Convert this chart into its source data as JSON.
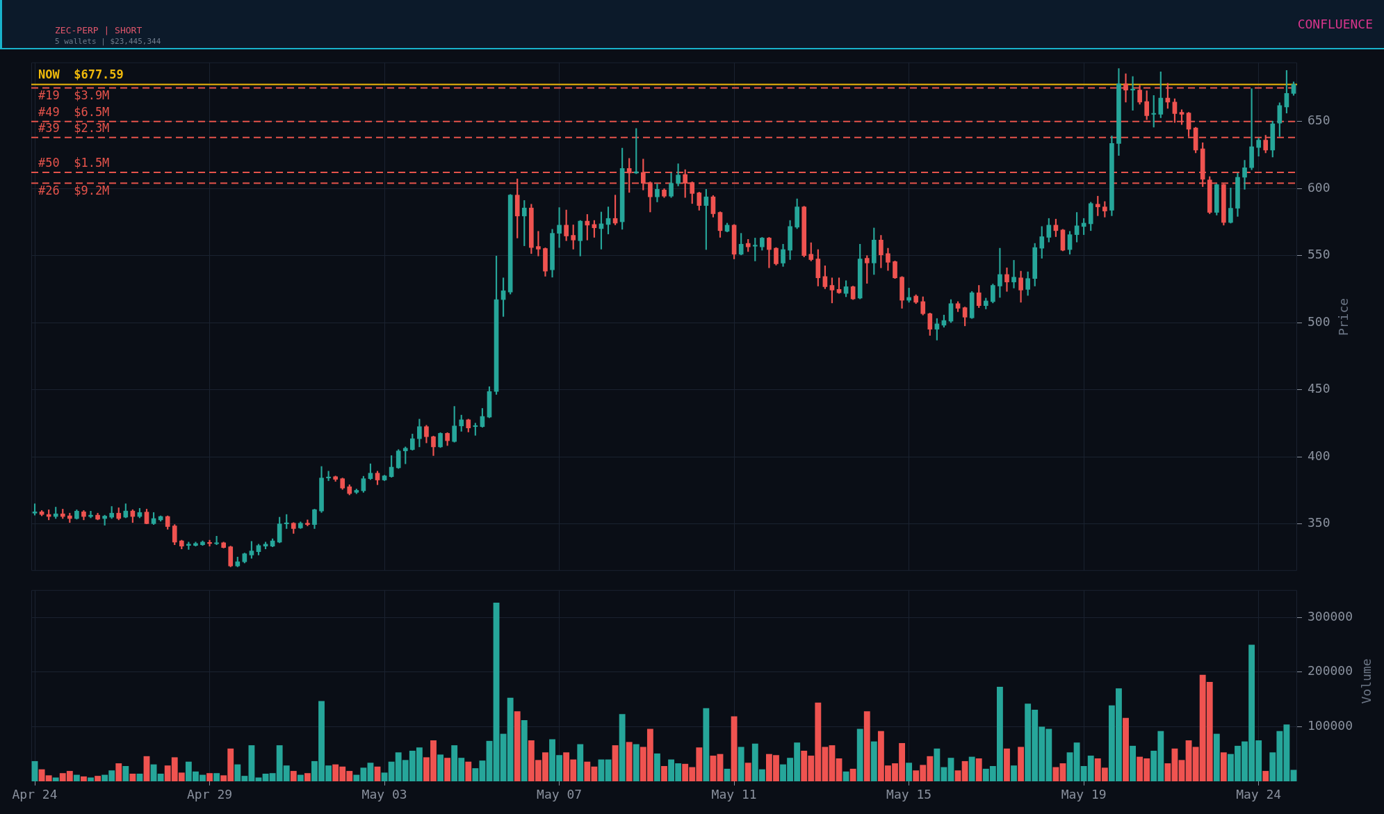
{
  "chart_data": [
    {
      "type": "candlestick",
      "title": "ZEC-PERP | SHORT",
      "subtitle": "5 wallets | $23,445,344",
      "annotations": [
        "CONFLUENCE"
      ],
      "ylabel": "Price",
      "tick_labels": "y",
      "grid": true,
      "categories": [
        null,
        null,
        null,
        null,
        null,
        null,
        null,
        null,
        null,
        null,
        null,
        null,
        null,
        null,
        null,
        null,
        null,
        null,
        null,
        null,
        null,
        null,
        null,
        null,
        null,
        null,
        null,
        null,
        null,
        null,
        null,
        null,
        null,
        null,
        null,
        null,
        null,
        null,
        null,
        null,
        null,
        null,
        null,
        null,
        null,
        null,
        null,
        null,
        null,
        null,
        null,
        null,
        null,
        null,
        null,
        null,
        null,
        null,
        null,
        null,
        null,
        null,
        null,
        null,
        null,
        null,
        null,
        null,
        null,
        null,
        null,
        null,
        null,
        null,
        null,
        null,
        null,
        null,
        null,
        null,
        null,
        null,
        null,
        null,
        null,
        null,
        null,
        null,
        null,
        null,
        null,
        null,
        null,
        null,
        null,
        null,
        null,
        null,
        null,
        null,
        null,
        null,
        null,
        null,
        null,
        null,
        null,
        null,
        null,
        null,
        null,
        null,
        null,
        null,
        null,
        null,
        null,
        null,
        null,
        null,
        null,
        null,
        null,
        null,
        null,
        null,
        null,
        null,
        null,
        null,
        null,
        null,
        null,
        null,
        null,
        null,
        null,
        null,
        null,
        null,
        null,
        null,
        null,
        null,
        null,
        null,
        null,
        null,
        null,
        null,
        null,
        null,
        null,
        null,
        null,
        null,
        null,
        null,
        null,
        null,
        null,
        null,
        null,
        null,
        null,
        null,
        null,
        null,
        null,
        null,
        null,
        null,
        null,
        null,
        null,
        null,
        null,
        null,
        null,
        null,
        null
      ],
      "ohlc": [
        [
          358,
          365,
          356.5,
          359
        ],
        [
          359,
          360,
          356,
          357
        ],
        [
          357,
          360.5,
          353,
          355.5
        ],
        [
          355.5,
          362.5,
          354,
          357.5
        ],
        [
          357.5,
          361,
          354,
          355.5
        ],
        [
          356,
          358,
          351,
          354
        ],
        [
          354,
          360.5,
          353.5,
          359.5
        ],
        [
          359,
          360,
          353,
          355.5
        ],
        [
          355.5,
          359.5,
          354.5,
          356.5
        ],
        [
          356.5,
          358,
          353,
          353.5
        ],
        [
          354,
          356.5,
          349,
          355.8
        ],
        [
          355,
          363,
          354,
          358
        ],
        [
          358,
          362,
          353,
          354
        ],
        [
          355,
          365,
          354.5,
          359.6
        ],
        [
          359.6,
          360.6,
          351,
          355.5
        ],
        [
          355.5,
          361.6,
          354.5,
          358.5
        ],
        [
          358.8,
          361,
          350,
          350.2
        ],
        [
          350.2,
          358.5,
          349.5,
          354
        ],
        [
          353,
          356,
          352,
          355.5
        ],
        [
          355.5,
          356,
          346,
          348
        ],
        [
          348.5,
          349.5,
          334.4,
          336.4
        ],
        [
          337.4,
          337.9,
          331.4,
          333.4
        ],
        [
          333.9,
          336.4,
          330.9,
          334.9
        ],
        [
          333.9,
          336.4,
          333.4,
          335.4
        ],
        [
          334.4,
          337.4,
          333.9,
          336.4
        ],
        [
          336.2,
          337.9,
          333.4,
          335.4
        ],
        [
          335.2,
          340.9,
          334.4,
          335.7
        ],
        [
          335.9,
          336.4,
          332,
          332.4
        ],
        [
          332.9,
          333.4,
          318,
          318.7
        ],
        [
          318.7,
          325.3,
          318,
          321.8
        ],
        [
          321.8,
          328.3,
          320.8,
          327.8
        ],
        [
          326.8,
          336.9,
          324.3,
          329.8
        ],
        [
          329.3,
          334.9,
          326.8,
          333.9
        ],
        [
          333.4,
          336.4,
          331.4,
          334.9
        ],
        [
          333.4,
          338.9,
          332.9,
          337.4
        ],
        [
          336.4,
          355,
          335.9,
          350
        ],
        [
          350,
          357,
          346.5,
          350.5
        ],
        [
          350.5,
          351,
          342.9,
          346.5
        ],
        [
          347,
          351.5,
          346.5,
          350.5
        ],
        [
          350.5,
          353,
          348.5,
          349.5
        ],
        [
          349.5,
          361,
          346.5,
          360.6
        ],
        [
          359.6,
          392.8,
          358.5,
          384.2
        ],
        [
          384.2,
          389.3,
          382.2,
          384.9
        ],
        [
          385.2,
          385.7,
          381.7,
          383.2
        ],
        [
          383.7,
          384.2,
          375.7,
          376.7
        ],
        [
          377.7,
          379.2,
          371.6,
          372.6
        ],
        [
          373.5,
          376,
          372.5,
          375
        ],
        [
          374.7,
          385.5,
          373.5,
          383.7
        ],
        [
          383.7,
          394.8,
          383,
          387.8
        ],
        [
          387.8,
          389.3,
          379.2,
          382.7
        ],
        [
          382.7,
          386.3,
          382.2,
          385.8
        ],
        [
          385.2,
          400.9,
          384.7,
          392.3
        ],
        [
          391.8,
          405.4,
          391.3,
          404.4
        ],
        [
          404.4,
          407.4,
          394.8,
          406.4
        ],
        [
          405.4,
          417,
          404.9,
          413.5
        ],
        [
          413.5,
          428.1,
          407.4,
          422.5
        ],
        [
          422.5,
          423.5,
          410.4,
          415
        ],
        [
          415,
          415.5,
          400.9,
          407.4
        ],
        [
          407.4,
          418,
          406.9,
          417.5
        ],
        [
          417.5,
          418,
          408.4,
          412
        ],
        [
          411.4,
          437.6,
          410.9,
          423
        ],
        [
          423,
          431.1,
          419,
          427.6
        ],
        [
          427.6,
          428.1,
          418.5,
          421.5
        ],
        [
          422.5,
          425.1,
          416,
          423
        ],
        [
          422.5,
          436.1,
          422,
          430.1
        ],
        [
          429.6,
          452.3,
          429.1,
          448.7
        ],
        [
          448.7,
          549.7,
          446.5,
          517.2
        ],
        [
          517.2,
          533.4,
          504.6,
          523.8
        ],
        [
          522.8,
          595.6,
          521.3,
          595.1
        ],
        [
          595.1,
          607.2,
          563.1,
          579.5
        ],
        [
          579.5,
          591.1,
          557.3,
          585.5
        ],
        [
          585.5,
          588.3,
          551.5,
          556
        ],
        [
          556.8,
          568.1,
          549.7,
          554.8
        ],
        [
          555.3,
          555.8,
          534.6,
          538.4
        ],
        [
          539.4,
          569.6,
          533.9,
          566.6
        ],
        [
          566.6,
          585.8,
          556,
          572.7
        ],
        [
          572.7,
          584,
          561.1,
          564.6
        ],
        [
          565.1,
          572.9,
          554.8,
          561.6
        ],
        [
          561.1,
          576.2,
          549.7,
          575.7
        ],
        [
          575.7,
          580.7,
          561.6,
          572.7
        ],
        [
          573.2,
          576.2,
          563.6,
          570.7
        ],
        [
          570.1,
          582.5,
          554.8,
          573.7
        ],
        [
          573.2,
          586.3,
          566.1,
          577.7
        ],
        [
          577.7,
          595.1,
          572.9,
          574.2
        ],
        [
          575.2,
          630.1,
          569.6,
          615
        ],
        [
          615,
          622.5,
          597.1,
          611.5
        ],
        [
          611.5,
          644.7,
          611,
          612.5
        ],
        [
          612,
          622,
          598.9,
          603.9
        ],
        [
          604.4,
          605,
          582.5,
          593.8
        ],
        [
          593.8,
          603.4,
          590,
          599.4
        ],
        [
          598.9,
          599.9,
          593.3,
          594.3
        ],
        [
          594.3,
          611.5,
          593.3,
          603.9
        ],
        [
          603.9,
          618.5,
          601.9,
          610
        ],
        [
          610.4,
          614,
          593.3,
          603.9
        ],
        [
          604.4,
          605,
          588.8,
          596.3
        ],
        [
          596.8,
          597.3,
          583.8,
          587.3
        ],
        [
          587.3,
          599.4,
          554.5,
          593.8
        ],
        [
          593.8,
          594.8,
          578.7,
          581.2
        ],
        [
          582.2,
          582.7,
          563.6,
          568.6
        ],
        [
          568.1,
          574.2,
          567.6,
          572.7
        ],
        [
          572.7,
          573.2,
          547.5,
          551
        ],
        [
          551,
          566.6,
          550.5,
          558.5
        ],
        [
          559.1,
          562.1,
          553,
          556.5
        ],
        [
          557,
          563.1,
          546,
          557.6
        ],
        [
          556.5,
          563.6,
          554,
          563.1
        ],
        [
          563.1,
          563.6,
          540.9,
          554.5
        ],
        [
          555.5,
          556,
          542.9,
          543.9
        ],
        [
          544.4,
          558.5,
          541.9,
          554.5
        ],
        [
          554,
          576.2,
          547,
          571.7
        ],
        [
          571.2,
          592.3,
          570.1,
          586.3
        ],
        [
          586.3,
          586.8,
          549,
          550
        ],
        [
          551,
          559.6,
          546,
          547
        ],
        [
          547.5,
          554.5,
          527.3,
          533.4
        ],
        [
          534.4,
          542.4,
          525.3,
          526.8
        ],
        [
          527.8,
          533.4,
          514.7,
          524.3
        ],
        [
          524.8,
          533.4,
          521.8,
          522.3
        ],
        [
          521.8,
          531.3,
          519.3,
          526.8
        ],
        [
          526.8,
          527.3,
          517.2,
          517.7
        ],
        [
          518.3,
          558.5,
          517.7,
          547.5
        ],
        [
          548,
          550,
          529.3,
          544.5
        ],
        [
          544.5,
          570.6,
          535.9,
          561.6
        ],
        [
          561.6,
          565.1,
          540.9,
          550.5
        ],
        [
          551.5,
          555.5,
          538.9,
          545
        ],
        [
          545.5,
          546,
          532.9,
          533.4
        ],
        [
          533.9,
          534.4,
          510.7,
          516.7
        ],
        [
          516.7,
          525.8,
          515.2,
          518.8
        ],
        [
          519.8,
          520.8,
          514.2,
          515.2
        ],
        [
          515.7,
          519.3,
          505.7,
          506.7
        ],
        [
          506.7,
          507.2,
          490.5,
          495.1
        ],
        [
          495.1,
          503.1,
          487,
          499.1
        ],
        [
          498.1,
          505.7,
          496.6,
          501.6
        ],
        [
          501.1,
          517.2,
          500.1,
          514.2
        ],
        [
          514.2,
          515.7,
          508.2,
          510.7
        ],
        [
          511.2,
          511.7,
          497.6,
          504.1
        ],
        [
          503.6,
          523.3,
          503.1,
          522.3
        ],
        [
          522.3,
          527.8,
          511.2,
          512.7
        ],
        [
          512.7,
          518.3,
          510.2,
          516.2
        ],
        [
          515.7,
          528.8,
          514.7,
          527.8
        ],
        [
          527.3,
          555.5,
          518.8,
          535.9
        ],
        [
          535.9,
          540.9,
          523.3,
          530.3
        ],
        [
          530.3,
          546.5,
          525.8,
          533.9
        ],
        [
          533.4,
          538.4,
          515.2,
          524.3
        ],
        [
          524.8,
          537.9,
          520.3,
          532.9
        ],
        [
          532.9,
          559.1,
          527.3,
          556
        ],
        [
          555.5,
          571.7,
          548,
          564.1
        ],
        [
          563.6,
          577.7,
          560.1,
          572.7
        ],
        [
          572.7,
          577.2,
          564.1,
          568.6
        ],
        [
          569.1,
          569.6,
          553.5,
          554
        ],
        [
          554.5,
          568.1,
          551,
          565.6
        ],
        [
          565.6,
          582.2,
          560.1,
          572.2
        ],
        [
          571.7,
          577.7,
          565.6,
          574.2
        ],
        [
          573.7,
          589.8,
          568.6,
          588.8
        ],
        [
          588.3,
          594.3,
          579.7,
          586.3
        ],
        [
          586.3,
          590.3,
          578.7,
          583.2
        ],
        [
          583.8,
          639.2,
          579.7,
          633.6
        ],
        [
          633.6,
          689.5,
          624.6,
          678
        ],
        [
          678,
          685.5,
          664.4,
          673.4
        ],
        [
          673.4,
          683.5,
          658.3,
          673.9
        ],
        [
          673.4,
          676.9,
          662.8,
          664.4
        ],
        [
          664.9,
          672.9,
          651.3,
          654.3
        ],
        [
          655.3,
          669.4,
          645.7,
          655.8
        ],
        [
          655.3,
          687,
          652.8,
          667.4
        ],
        [
          667.4,
          678.5,
          659.8,
          664.4
        ],
        [
          664.4,
          666.9,
          649.2,
          655.8
        ],
        [
          656.8,
          658.8,
          647.7,
          655.3
        ],
        [
          656.3,
          656.8,
          638.7,
          644.2
        ],
        [
          645.2,
          645.7,
          626.6,
          628.6
        ],
        [
          629.6,
          634.1,
          601.4,
          606.9
        ],
        [
          606.4,
          608.9,
          581.2,
          582.2
        ],
        [
          582.2,
          603.4,
          580.2,
          602.9
        ],
        [
          602.9,
          603.4,
          572.7,
          574.7
        ],
        [
          574.7,
          600.4,
          574.2,
          585.3
        ],
        [
          585.3,
          611.5,
          579.2,
          608.4
        ],
        [
          608.4,
          621,
          599.4,
          615.5
        ],
        [
          615.5,
          674.4,
          614,
          631.1
        ],
        [
          630.6,
          637.6,
          624.1,
          636.1
        ],
        [
          636.1,
          639.7,
          626.6,
          628.6
        ],
        [
          628.6,
          650.2,
          623.5,
          648.2
        ],
        [
          648.7,
          663.9,
          638.7,
          661.8
        ],
        [
          660.8,
          688,
          656.3,
          670.9
        ],
        [
          670.9,
          679.5,
          669.4,
          677.6
        ]
      ],
      "colors": [
        "#26a69a",
        "#ef5350",
        "#ef5350",
        "#26a69a",
        "#ef5350",
        "#ef5350",
        "#26a69a",
        "#ef5350",
        "#26a69a",
        "#ef5350",
        "#26a69a",
        "#26a69a",
        "#ef5350",
        "#26a69a",
        "#ef5350",
        "#26a69a",
        "#ef5350",
        "#26a69a",
        "#26a69a",
        "#ef5350",
        "#ef5350",
        "#ef5350",
        "#26a69a",
        "#26a69a",
        "#26a69a",
        "#ef5350",
        "#26a69a",
        "#ef5350",
        "#ef5350",
        "#26a69a",
        "#26a69a",
        "#26a69a",
        "#26a69a",
        "#26a69a",
        "#26a69a",
        "#26a69a",
        "#26a69a",
        "#ef5350",
        "#26a69a",
        "#ef5350",
        "#26a69a",
        "#26a69a",
        "#26a69a",
        "#ef5350",
        "#ef5350",
        "#ef5350",
        "#26a69a",
        "#26a69a",
        "#26a69a",
        "#ef5350",
        "#26a69a",
        "#26a69a",
        "#26a69a",
        "#26a69a",
        "#26a69a",
        "#26a69a",
        "#ef5350",
        "#ef5350",
        "#26a69a",
        "#ef5350",
        "#26a69a",
        "#26a69a",
        "#ef5350",
        "#26a69a",
        "#26a69a",
        "#26a69a",
        "#26a69a",
        "#26a69a",
        "#26a69a",
        "#ef5350",
        "#26a69a",
        "#ef5350",
        "#ef5350",
        "#ef5350",
        "#26a69a",
        "#26a69a",
        "#ef5350",
        "#ef5350",
        "#26a69a",
        "#ef5350",
        "#ef5350",
        "#26a69a",
        "#26a69a",
        "#ef5350",
        "#26a69a",
        "#ef5350",
        "#26a69a",
        "#ef5350",
        "#ef5350",
        "#26a69a",
        "#ef5350",
        "#26a69a",
        "#26a69a",
        "#ef5350",
        "#ef5350",
        "#ef5350",
        "#26a69a",
        "#ef5350",
        "#ef5350",
        "#26a69a",
        "#ef5350",
        "#26a69a",
        "#ef5350",
        "#26a69a",
        "#26a69a",
        "#ef5350",
        "#ef5350",
        "#26a69a",
        "#26a69a",
        "#26a69a",
        "#ef5350",
        "#ef5350",
        "#ef5350",
        "#ef5350",
        "#ef5350",
        "#ef5350",
        "#26a69a",
        "#ef5350",
        "#26a69a",
        "#ef5350",
        "#26a69a",
        "#ef5350",
        "#ef5350",
        "#ef5350",
        "#ef5350",
        "#26a69a",
        "#ef5350",
        "#ef5350",
        "#ef5350",
        "#26a69a",
        "#26a69a",
        "#26a69a",
        "#ef5350",
        "#ef5350",
        "#26a69a",
        "#ef5350",
        "#26a69a",
        "#26a69a",
        "#26a69a",
        "#ef5350",
        "#26a69a",
        "#ef5350",
        "#26a69a",
        "#26a69a",
        "#26a69a",
        "#26a69a",
        "#ef5350",
        "#ef5350",
        "#26a69a",
        "#26a69a",
        "#26a69a",
        "#26a69a",
        "#ef5350",
        "#ef5350",
        "#26a69a",
        "#26a69a",
        "#ef5350",
        "#26a69a",
        "#ef5350",
        "#ef5350",
        "#26a69a",
        "#26a69a",
        "#ef5350",
        "#ef5350",
        "#ef5350",
        "#ef5350",
        "#ef5350",
        "#ef5350",
        "#ef5350",
        "#26a69a",
        "#ef5350",
        "#26a69a",
        "#26a69a",
        "#26a69a",
        "#26a69a",
        "#26a69a",
        "#ef5350",
        "#26a69a",
        "#26a69a",
        "#26a69a",
        "#26a69a"
      ],
      "ylim": [
        315,
        694
      ],
      "yticks": [
        350,
        400,
        450,
        500,
        550,
        600,
        650
      ],
      "ref_lines": [
        {
          "axis": "y",
          "value": 677.59,
          "label": "NOW  $677.59",
          "color": "#f0b90b",
          "line_style": "solid"
        },
        {
          "axis": "y",
          "value": 675,
          "label": "#19  $3.9M",
          "color": "#e5534b",
          "line_style": "dashed"
        },
        {
          "axis": "y",
          "value": 650,
          "label": "#49  $6.5M",
          "color": "#e5534b",
          "line_style": "dashed"
        },
        {
          "axis": "y",
          "value": 638,
          "label": "#39  $2.3M",
          "color": "#e5534b",
          "line_style": "dashed"
        },
        {
          "axis": "y",
          "value": 612,
          "label": "#50  $1.5M",
          "color": "#e5534b",
          "line_style": "dashed"
        },
        {
          "axis": "y",
          "value": 604,
          "label": "#26  $9.2M",
          "color": "#e5534b",
          "line_style": "dashed"
        }
      ]
    },
    {
      "type": "bar",
      "ylabel": "Volume",
      "grid": true,
      "categories": [
        "Apr 24",
        null,
        null,
        null,
        null,
        null,
        null,
        null,
        null,
        null,
        null,
        null,
        null,
        null,
        null,
        null,
        null,
        null,
        null,
        null,
        null,
        null,
        null,
        null,
        null,
        "Apr 29",
        null,
        null,
        null,
        null,
        null,
        null,
        null,
        null,
        null,
        null,
        null,
        null,
        null,
        null,
        null,
        null,
        null,
        null,
        null,
        null,
        null,
        null,
        null,
        null,
        "May 03",
        null,
        null,
        null,
        null,
        null,
        null,
        null,
        null,
        null,
        null,
        null,
        null,
        null,
        null,
        null,
        null,
        null,
        null,
        null,
        null,
        null,
        null,
        null,
        null,
        "May 07",
        null,
        null,
        null,
        null,
        null,
        null,
        null,
        null,
        null,
        null,
        null,
        null,
        null,
        null,
        null,
        null,
        null,
        null,
        null,
        null,
        null,
        null,
        null,
        null,
        "May 11",
        null,
        null,
        null,
        null,
        null,
        null,
        null,
        null,
        null,
        null,
        null,
        null,
        null,
        null,
        null,
        null,
        null,
        null,
        null,
        null,
        null,
        null,
        null,
        null,
        "May 15",
        null,
        null,
        null,
        null,
        null,
        null,
        null,
        null,
        null,
        null,
        null,
        null,
        null,
        null,
        null,
        null,
        null,
        null,
        null,
        null,
        null,
        null,
        null,
        null,
        "May 19",
        null,
        null,
        null,
        null,
        null,
        null,
        null,
        null,
        null,
        null,
        null,
        null,
        null,
        null,
        null,
        null,
        null,
        null,
        null,
        null,
        null,
        null,
        null,
        null,
        "May 24",
        null,
        null,
        null,
        null,
        null
      ],
      "values": [
        37000,
        22000,
        11000,
        7000,
        15000,
        19000,
        12000,
        9000,
        7000,
        10000,
        12000,
        20000,
        33000,
        28000,
        14000,
        14000,
        46000,
        31000,
        14000,
        29000,
        44000,
        16000,
        36000,
        18000,
        12000,
        15000,
        15000,
        11000,
        60000,
        31000,
        10000,
        66000,
        7000,
        14000,
        15000,
        66000,
        29000,
        19000,
        12000,
        15000,
        37000,
        147000,
        29000,
        31000,
        27000,
        19000,
        12000,
        25000,
        34000,
        27000,
        16000,
        36000,
        53000,
        39000,
        56000,
        62000,
        44000,
        75000,
        49000,
        43000,
        66000,
        43000,
        36000,
        24000,
        38000,
        74000,
        327000,
        87000,
        153000,
        128000,
        112000,
        75000,
        39000,
        53000,
        77000,
        48000,
        53000,
        40000,
        68000,
        36000,
        27000,
        40000,
        40000,
        66000,
        123000,
        72000,
        68000,
        63000,
        96000,
        51000,
        28000,
        40000,
        33000,
        32000,
        26000,
        62000,
        134000,
        47000,
        50000,
        23000,
        119000,
        63000,
        34000,
        69000,
        22000,
        50000,
        48000,
        31000,
        43000,
        71000,
        56000,
        47000,
        144000,
        63000,
        66000,
        42000,
        18000,
        23000,
        96000,
        128000,
        73000,
        92000,
        29000,
        33000,
        70000,
        34000,
        20000,
        30000,
        46000,
        60000,
        26000,
        43000,
        20000,
        37000,
        45000,
        42000,
        23000,
        28000,
        173000,
        60000,
        29000,
        63000,
        142000,
        131000,
        100000,
        96000,
        26000,
        33000,
        53000,
        71000,
        28000,
        47000,
        42000,
        25000,
        139000,
        170000,
        116000,
        65000,
        45000,
        42000,
        56000,
        92000,
        33000,
        60000,
        39000,
        75000,
        63000,
        195000,
        182000,
        87000,
        53000,
        50000,
        65000,
        73000,
        250000,
        75000,
        19000,
        53000,
        92000,
        104000,
        21000
      ],
      "colors": [
        "#26a69a",
        "#ef5350",
        "#ef5350",
        "#26a69a",
        "#ef5350",
        "#ef5350",
        "#26a69a",
        "#ef5350",
        "#26a69a",
        "#ef5350",
        "#26a69a",
        "#26a69a",
        "#ef5350",
        "#26a69a",
        "#ef5350",
        "#26a69a",
        "#ef5350",
        "#26a69a",
        "#26a69a",
        "#ef5350",
        "#ef5350",
        "#ef5350",
        "#26a69a",
        "#26a69a",
        "#26a69a",
        "#ef5350",
        "#26a69a",
        "#ef5350",
        "#ef5350",
        "#26a69a",
        "#26a69a",
        "#26a69a",
        "#26a69a",
        "#26a69a",
        "#26a69a",
        "#26a69a",
        "#26a69a",
        "#ef5350",
        "#26a69a",
        "#ef5350",
        "#26a69a",
        "#26a69a",
        "#26a69a",
        "#ef5350",
        "#ef5350",
        "#ef5350",
        "#26a69a",
        "#26a69a",
        "#26a69a",
        "#ef5350",
        "#26a69a",
        "#26a69a",
        "#26a69a",
        "#26a69a",
        "#26a69a",
        "#26a69a",
        "#ef5350",
        "#ef5350",
        "#26a69a",
        "#ef5350",
        "#26a69a",
        "#26a69a",
        "#ef5350",
        "#26a69a",
        "#26a69a",
        "#26a69a",
        "#26a69a",
        "#26a69a",
        "#26a69a",
        "#ef5350",
        "#26a69a",
        "#ef5350",
        "#ef5350",
        "#ef5350",
        "#26a69a",
        "#26a69a",
        "#ef5350",
        "#ef5350",
        "#26a69a",
        "#ef5350",
        "#ef5350",
        "#26a69a",
        "#26a69a",
        "#ef5350",
        "#26a69a",
        "#ef5350",
        "#26a69a",
        "#ef5350",
        "#ef5350",
        "#26a69a",
        "#ef5350",
        "#26a69a",
        "#26a69a",
        "#ef5350",
        "#ef5350",
        "#ef5350",
        "#26a69a",
        "#ef5350",
        "#ef5350",
        "#26a69a",
        "#ef5350",
        "#26a69a",
        "#ef5350",
        "#26a69a",
        "#26a69a",
        "#ef5350",
        "#ef5350",
        "#26a69a",
        "#26a69a",
        "#26a69a",
        "#ef5350",
        "#ef5350",
        "#ef5350",
        "#ef5350",
        "#ef5350",
        "#ef5350",
        "#26a69a",
        "#ef5350",
        "#26a69a",
        "#ef5350",
        "#26a69a",
        "#ef5350",
        "#ef5350",
        "#ef5350",
        "#ef5350",
        "#26a69a",
        "#ef5350",
        "#ef5350",
        "#ef5350",
        "#26a69a",
        "#26a69a",
        "#26a69a",
        "#ef5350",
        "#ef5350",
        "#26a69a",
        "#ef5350",
        "#26a69a",
        "#26a69a",
        "#26a69a",
        "#ef5350",
        "#26a69a",
        "#ef5350",
        "#26a69a",
        "#26a69a",
        "#26a69a",
        "#26a69a",
        "#ef5350",
        "#ef5350",
        "#26a69a",
        "#26a69a",
        "#26a69a",
        "#26a69a",
        "#ef5350",
        "#ef5350",
        "#26a69a",
        "#26a69a",
        "#ef5350",
        "#26a69a",
        "#ef5350",
        "#ef5350",
        "#26a69a",
        "#26a69a",
        "#ef5350",
        "#ef5350",
        "#ef5350",
        "#ef5350",
        "#ef5350",
        "#ef5350",
        "#ef5350",
        "#26a69a",
        "#ef5350",
        "#26a69a",
        "#26a69a",
        "#26a69a",
        "#26a69a",
        "#26a69a",
        "#ef5350",
        "#26a69a",
        "#26a69a",
        "#26a69a",
        "#26a69a"
      ],
      "ylim": [
        0,
        350000
      ],
      "yticks": [
        100000,
        200000,
        300000
      ]
    }
  ]
}
